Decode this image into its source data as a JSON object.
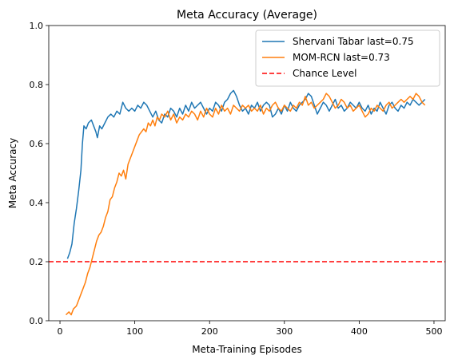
{
  "chart_data": {
    "type": "line",
    "title": "Meta Accuracy (Average)",
    "xlabel": "Meta-Training Episodes",
    "ylabel": "Meta Accuracy",
    "xlim": [
      -15,
      515
    ],
    "ylim": [
      0.0,
      1.0
    ],
    "xticks": [
      0,
      100,
      200,
      300,
      400,
      500
    ],
    "yticks": [
      0.0,
      0.2,
      0.4,
      0.6,
      0.8,
      1.0
    ],
    "xtick_labels": [
      "0",
      "100",
      "200",
      "300",
      "400",
      "500"
    ],
    "ytick_labels": [
      "0.0",
      "0.2",
      "0.4",
      "0.6",
      "0.8",
      "1.0"
    ],
    "grid": false,
    "legend_position": "top-right",
    "series": [
      {
        "name": "Shervani Tabar last=0.75",
        "color": "#1f77b4",
        "points": [
          [
            10,
            0.21
          ],
          [
            13,
            0.23
          ],
          [
            16,
            0.26
          ],
          [
            19,
            0.33
          ],
          [
            22,
            0.38
          ],
          [
            25,
            0.44
          ],
          [
            28,
            0.51
          ],
          [
            30,
            0.6
          ],
          [
            32,
            0.66
          ],
          [
            35,
            0.65
          ],
          [
            38,
            0.67
          ],
          [
            42,
            0.68
          ],
          [
            45,
            0.66
          ],
          [
            48,
            0.64
          ],
          [
            50,
            0.62
          ],
          [
            53,
            0.66
          ],
          [
            56,
            0.65
          ],
          [
            60,
            0.67
          ],
          [
            64,
            0.69
          ],
          [
            68,
            0.7
          ],
          [
            72,
            0.69
          ],
          [
            76,
            0.71
          ],
          [
            80,
            0.7
          ],
          [
            84,
            0.74
          ],
          [
            88,
            0.72
          ],
          [
            92,
            0.71
          ],
          [
            96,
            0.72
          ],
          [
            100,
            0.71
          ],
          [
            104,
            0.73
          ],
          [
            108,
            0.72
          ],
          [
            112,
            0.74
          ],
          [
            116,
            0.73
          ],
          [
            120,
            0.71
          ],
          [
            124,
            0.69
          ],
          [
            128,
            0.71
          ],
          [
            132,
            0.68
          ],
          [
            136,
            0.67
          ],
          [
            140,
            0.7
          ],
          [
            144,
            0.69
          ],
          [
            148,
            0.72
          ],
          [
            152,
            0.71
          ],
          [
            156,
            0.69
          ],
          [
            160,
            0.72
          ],
          [
            164,
            0.7
          ],
          [
            168,
            0.73
          ],
          [
            172,
            0.71
          ],
          [
            176,
            0.74
          ],
          [
            180,
            0.72
          ],
          [
            184,
            0.73
          ],
          [
            188,
            0.74
          ],
          [
            192,
            0.72
          ],
          [
            196,
            0.7
          ],
          [
            200,
            0.72
          ],
          [
            204,
            0.71
          ],
          [
            208,
            0.74
          ],
          [
            212,
            0.73
          ],
          [
            216,
            0.71
          ],
          [
            220,
            0.74
          ],
          [
            224,
            0.75
          ],
          [
            228,
            0.77
          ],
          [
            232,
            0.78
          ],
          [
            236,
            0.76
          ],
          [
            240,
            0.73
          ],
          [
            244,
            0.71
          ],
          [
            248,
            0.72
          ],
          [
            252,
            0.7
          ],
          [
            256,
            0.73
          ],
          [
            260,
            0.72
          ],
          [
            264,
            0.74
          ],
          [
            268,
            0.71
          ],
          [
            272,
            0.73
          ],
          [
            276,
            0.74
          ],
          [
            280,
            0.73
          ],
          [
            284,
            0.69
          ],
          [
            288,
            0.7
          ],
          [
            292,
            0.72
          ],
          [
            296,
            0.7
          ],
          [
            300,
            0.73
          ],
          [
            304,
            0.71
          ],
          [
            308,
            0.74
          ],
          [
            312,
            0.72
          ],
          [
            316,
            0.71
          ],
          [
            320,
            0.73
          ],
          [
            324,
            0.74
          ],
          [
            328,
            0.75
          ],
          [
            332,
            0.77
          ],
          [
            336,
            0.76
          ],
          [
            340,
            0.73
          ],
          [
            344,
            0.7
          ],
          [
            348,
            0.72
          ],
          [
            352,
            0.74
          ],
          [
            356,
            0.73
          ],
          [
            360,
            0.71
          ],
          [
            364,
            0.73
          ],
          [
            368,
            0.75
          ],
          [
            372,
            0.72
          ],
          [
            376,
            0.73
          ],
          [
            380,
            0.71
          ],
          [
            384,
            0.72
          ],
          [
            388,
            0.74
          ],
          [
            392,
            0.73
          ],
          [
            396,
            0.72
          ],
          [
            400,
            0.74
          ],
          [
            404,
            0.72
          ],
          [
            408,
            0.71
          ],
          [
            412,
            0.73
          ],
          [
            416,
            0.7
          ],
          [
            420,
            0.72
          ],
          [
            424,
            0.71
          ],
          [
            428,
            0.74
          ],
          [
            432,
            0.72
          ],
          [
            436,
            0.7
          ],
          [
            440,
            0.73
          ],
          [
            444,
            0.74
          ],
          [
            448,
            0.72
          ],
          [
            452,
            0.71
          ],
          [
            456,
            0.73
          ],
          [
            460,
            0.72
          ],
          [
            464,
            0.74
          ],
          [
            468,
            0.73
          ],
          [
            472,
            0.75
          ],
          [
            476,
            0.74
          ],
          [
            480,
            0.73
          ],
          [
            484,
            0.74
          ],
          [
            488,
            0.75
          ]
        ]
      },
      {
        "name": "MOM-RCN last=0.73",
        "color": "#ff7f0e",
        "points": [
          [
            8,
            0.02
          ],
          [
            12,
            0.03
          ],
          [
            15,
            0.02
          ],
          [
            18,
            0.04
          ],
          [
            22,
            0.05
          ],
          [
            25,
            0.07
          ],
          [
            28,
            0.09
          ],
          [
            31,
            0.11
          ],
          [
            34,
            0.13
          ],
          [
            37,
            0.16
          ],
          [
            40,
            0.18
          ],
          [
            43,
            0.21
          ],
          [
            46,
            0.24
          ],
          [
            49,
            0.27
          ],
          [
            52,
            0.29
          ],
          [
            55,
            0.3
          ],
          [
            58,
            0.32
          ],
          [
            61,
            0.35
          ],
          [
            64,
            0.37
          ],
          [
            67,
            0.41
          ],
          [
            70,
            0.42
          ],
          [
            73,
            0.45
          ],
          [
            76,
            0.47
          ],
          [
            79,
            0.5
          ],
          [
            82,
            0.49
          ],
          [
            85,
            0.51
          ],
          [
            88,
            0.48
          ],
          [
            91,
            0.53
          ],
          [
            94,
            0.55
          ],
          [
            97,
            0.57
          ],
          [
            100,
            0.59
          ],
          [
            103,
            0.61
          ],
          [
            106,
            0.63
          ],
          [
            109,
            0.64
          ],
          [
            112,
            0.65
          ],
          [
            115,
            0.64
          ],
          [
            118,
            0.67
          ],
          [
            121,
            0.66
          ],
          [
            124,
            0.68
          ],
          [
            127,
            0.66
          ],
          [
            130,
            0.69
          ],
          [
            133,
            0.68
          ],
          [
            136,
            0.7
          ],
          [
            140,
            0.69
          ],
          [
            144,
            0.71
          ],
          [
            148,
            0.68
          ],
          [
            152,
            0.7
          ],
          [
            156,
            0.67
          ],
          [
            160,
            0.69
          ],
          [
            164,
            0.68
          ],
          [
            168,
            0.7
          ],
          [
            172,
            0.69
          ],
          [
            176,
            0.71
          ],
          [
            180,
            0.7
          ],
          [
            184,
            0.68
          ],
          [
            188,
            0.71
          ],
          [
            192,
            0.69
          ],
          [
            196,
            0.72
          ],
          [
            200,
            0.7
          ],
          [
            204,
            0.69
          ],
          [
            208,
            0.72
          ],
          [
            212,
            0.7
          ],
          [
            216,
            0.73
          ],
          [
            220,
            0.71
          ],
          [
            224,
            0.72
          ],
          [
            228,
            0.7
          ],
          [
            232,
            0.73
          ],
          [
            236,
            0.72
          ],
          [
            240,
            0.71
          ],
          [
            244,
            0.73
          ],
          [
            248,
            0.72
          ],
          [
            252,
            0.73
          ],
          [
            256,
            0.71
          ],
          [
            260,
            0.72
          ],
          [
            264,
            0.71
          ],
          [
            268,
            0.73
          ],
          [
            272,
            0.7
          ],
          [
            276,
            0.72
          ],
          [
            280,
            0.71
          ],
          [
            284,
            0.73
          ],
          [
            288,
            0.74
          ],
          [
            292,
            0.72
          ],
          [
            296,
            0.71
          ],
          [
            300,
            0.73
          ],
          [
            304,
            0.72
          ],
          [
            308,
            0.71
          ],
          [
            312,
            0.73
          ],
          [
            316,
            0.72
          ],
          [
            320,
            0.74
          ],
          [
            324,
            0.73
          ],
          [
            328,
            0.76
          ],
          [
            332,
            0.73
          ],
          [
            336,
            0.74
          ],
          [
            340,
            0.72
          ],
          [
            344,
            0.73
          ],
          [
            348,
            0.74
          ],
          [
            352,
            0.75
          ],
          [
            356,
            0.77
          ],
          [
            360,
            0.76
          ],
          [
            364,
            0.74
          ],
          [
            368,
            0.72
          ],
          [
            372,
            0.73
          ],
          [
            376,
            0.75
          ],
          [
            380,
            0.74
          ],
          [
            384,
            0.72
          ],
          [
            388,
            0.73
          ],
          [
            392,
            0.71
          ],
          [
            396,
            0.72
          ],
          [
            400,
            0.73
          ],
          [
            404,
            0.71
          ],
          [
            408,
            0.69
          ],
          [
            412,
            0.7
          ],
          [
            416,
            0.72
          ],
          [
            420,
            0.71
          ],
          [
            424,
            0.73
          ],
          [
            428,
            0.72
          ],
          [
            432,
            0.71
          ],
          [
            436,
            0.73
          ],
          [
            440,
            0.74
          ],
          [
            444,
            0.72
          ],
          [
            448,
            0.73
          ],
          [
            452,
            0.74
          ],
          [
            456,
            0.75
          ],
          [
            460,
            0.74
          ],
          [
            464,
            0.75
          ],
          [
            468,
            0.76
          ],
          [
            472,
            0.75
          ],
          [
            476,
            0.77
          ],
          [
            480,
            0.76
          ],
          [
            484,
            0.74
          ],
          [
            488,
            0.73
          ]
        ]
      }
    ],
    "reference_lines": [
      {
        "name": "Chance Level",
        "y": 0.2,
        "color": "#ff0000",
        "style": "dashed"
      }
    ]
  }
}
